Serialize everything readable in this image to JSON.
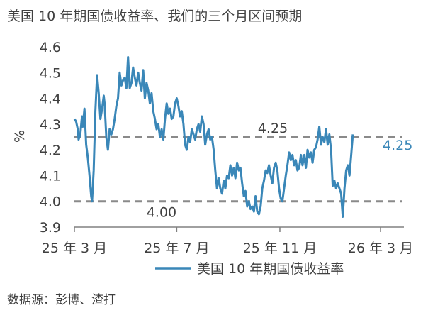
{
  "page": {
    "title": "美国 10 年期国债收益率、我们的三个月区间预期",
    "source": "数据源：彭博、渣打"
  },
  "chart_data": {
    "type": "line",
    "ylabel": "%",
    "ylim": [
      3.9,
      4.6
    ],
    "yticks": [
      "3.9",
      "4.0",
      "4.1",
      "4.2",
      "4.3",
      "4.4",
      "4.5",
      "4.6"
    ],
    "xlim": [
      0,
      370
    ],
    "xticks": [
      {
        "label": "25 年 3 月",
        "x": 0
      },
      {
        "label": "25 年 7 月",
        "x": 122
      },
      {
        "label": "25 年 11 月",
        "x": 245
      },
      {
        "label": "26 年 3 月",
        "x": 365
      }
    ],
    "legend": "bottom",
    "series": [
      {
        "name": "美国 10 年期国债收益率",
        "color": "#3a87b8",
        "values": [
          [
            0,
            4.32
          ],
          [
            2,
            4.31
          ],
          [
            4,
            4.28
          ],
          [
            5,
            4.24
          ],
          [
            7,
            4.26
          ],
          [
            9,
            4.33
          ],
          [
            10,
            4.29
          ],
          [
            12,
            4.36
          ],
          [
            14,
            4.22
          ],
          [
            16,
            4.17
          ],
          [
            18,
            4.1
          ],
          [
            20,
            4.02
          ],
          [
            21,
            4.0
          ],
          [
            23,
            4.12
          ],
          [
            25,
            4.35
          ],
          [
            27,
            4.49
          ],
          [
            29,
            4.42
          ],
          [
            31,
            4.32
          ],
          [
            33,
            4.36
          ],
          [
            35,
            4.41
          ],
          [
            36,
            4.38
          ],
          [
            38,
            4.25
          ],
          [
            40,
            4.2
          ],
          [
            42,
            4.28
          ],
          [
            44,
            4.26
          ],
          [
            46,
            4.28
          ],
          [
            48,
            4.32
          ],
          [
            50,
            4.37
          ],
          [
            52,
            4.4
          ],
          [
            54,
            4.5
          ],
          [
            56,
            4.45
          ],
          [
            58,
            4.47
          ],
          [
            60,
            4.48
          ],
          [
            62,
            4.44
          ],
          [
            64,
            4.56
          ],
          [
            66,
            4.44
          ],
          [
            68,
            4.46
          ],
          [
            70,
            4.52
          ],
          [
            72,
            4.48
          ],
          [
            74,
            4.45
          ],
          [
            76,
            4.5
          ],
          [
            78,
            4.46
          ],
          [
            80,
            4.43
          ],
          [
            82,
            4.51
          ],
          [
            84,
            4.4
          ],
          [
            86,
            4.46
          ],
          [
            88,
            4.43
          ],
          [
            90,
            4.38
          ],
          [
            92,
            4.42
          ],
          [
            94,
            4.35
          ],
          [
            96,
            4.32
          ],
          [
            98,
            4.28
          ],
          [
            100,
            4.3
          ],
          [
            102,
            4.25
          ],
          [
            104,
            4.28
          ],
          [
            106,
            4.24
          ],
          [
            108,
            4.32
          ],
          [
            110,
            4.38
          ],
          [
            112,
            4.34
          ],
          [
            114,
            4.36
          ],
          [
            116,
            4.32
          ],
          [
            118,
            4.33
          ],
          [
            120,
            4.38
          ],
          [
            122,
            4.4
          ],
          [
            124,
            4.37
          ],
          [
            126,
            4.33
          ],
          [
            128,
            4.35
          ],
          [
            130,
            4.3
          ],
          [
            132,
            4.22
          ],
          [
            134,
            4.2
          ],
          [
            136,
            4.25
          ],
          [
            138,
            4.23
          ],
          [
            140,
            4.28
          ],
          [
            142,
            4.26
          ],
          [
            144,
            4.24
          ],
          [
            146,
            4.28
          ],
          [
            148,
            4.3
          ],
          [
            150,
            4.27
          ],
          [
            152,
            4.33
          ],
          [
            154,
            4.3
          ],
          [
            156,
            4.22
          ],
          [
            158,
            4.26
          ],
          [
            160,
            4.28
          ],
          [
            162,
            4.24
          ],
          [
            164,
            4.25
          ],
          [
            166,
            4.2
          ],
          [
            168,
            4.12
          ],
          [
            170,
            4.05
          ],
          [
            172,
            4.09
          ],
          [
            174,
            4.05
          ],
          [
            176,
            4.03
          ],
          [
            178,
            4.08
          ],
          [
            180,
            4.05
          ],
          [
            182,
            4.1
          ],
          [
            184,
            4.09
          ],
          [
            186,
            4.14
          ],
          [
            188,
            4.1
          ],
          [
            190,
            4.13
          ],
          [
            192,
            4.09
          ],
          [
            194,
            4.15
          ],
          [
            196,
            4.12
          ],
          [
            198,
            4.13
          ],
          [
            200,
            4.07
          ],
          [
            202,
            4.02
          ],
          [
            204,
            4.04
          ],
          [
            206,
            3.98
          ],
          [
            208,
            4.0
          ],
          [
            210,
            3.97
          ],
          [
            212,
            3.98
          ],
          [
            214,
            3.96
          ],
          [
            216,
            4.02
          ],
          [
            218,
            3.96
          ],
          [
            220,
            3.95
          ],
          [
            222,
            3.98
          ],
          [
            224,
            4.05
          ],
          [
            226,
            4.08
          ],
          [
            228,
            4.12
          ],
          [
            230,
            4.11
          ],
          [
            232,
            4.14
          ],
          [
            234,
            4.1
          ],
          [
            236,
            4.07
          ],
          [
            238,
            4.13
          ],
          [
            240,
            4.15
          ],
          [
            242,
            4.12
          ],
          [
            244,
            4.05
          ],
          [
            246,
            4.01
          ],
          [
            248,
            4.0
          ],
          [
            250,
            4.05
          ],
          [
            252,
            4.1
          ],
          [
            254,
            4.14
          ],
          [
            256,
            4.19
          ],
          [
            258,
            4.16
          ],
          [
            260,
            4.18
          ],
          [
            262,
            4.14
          ],
          [
            264,
            4.16
          ],
          [
            266,
            4.12
          ],
          [
            268,
            4.13
          ],
          [
            270,
            4.18
          ],
          [
            272,
            4.14
          ],
          [
            274,
            4.18
          ],
          [
            276,
            4.13
          ],
          [
            278,
            4.2
          ],
          [
            280,
            4.17
          ],
          [
            282,
            4.19
          ],
          [
            284,
            4.15
          ],
          [
            286,
            4.2
          ],
          [
            288,
            4.21
          ],
          [
            290,
            4.24
          ],
          [
            292,
            4.29
          ],
          [
            294,
            4.22
          ],
          [
            296,
            4.25
          ],
          [
            298,
            4.23
          ],
          [
            300,
            4.28
          ],
          [
            302,
            4.22
          ],
          [
            304,
            4.26
          ],
          [
            306,
            4.2
          ],
          [
            308,
            4.06
          ],
          [
            310,
            4.08
          ],
          [
            312,
            4.05
          ],
          [
            314,
            4.07
          ],
          [
            316,
            4.05
          ],
          [
            318,
            4.03
          ],
          [
            320,
            3.94
          ],
          [
            322,
            4.05
          ],
          [
            324,
            4.12
          ],
          [
            326,
            4.14
          ],
          [
            328,
            4.1
          ],
          [
            330,
            4.18
          ],
          [
            332,
            4.26
          ]
        ]
      }
    ],
    "reference_lines": [
      {
        "value": 4.25,
        "label": "4.25"
      },
      {
        "value": 4.0,
        "label": "4.00"
      }
    ],
    "end_label": "4.25"
  }
}
